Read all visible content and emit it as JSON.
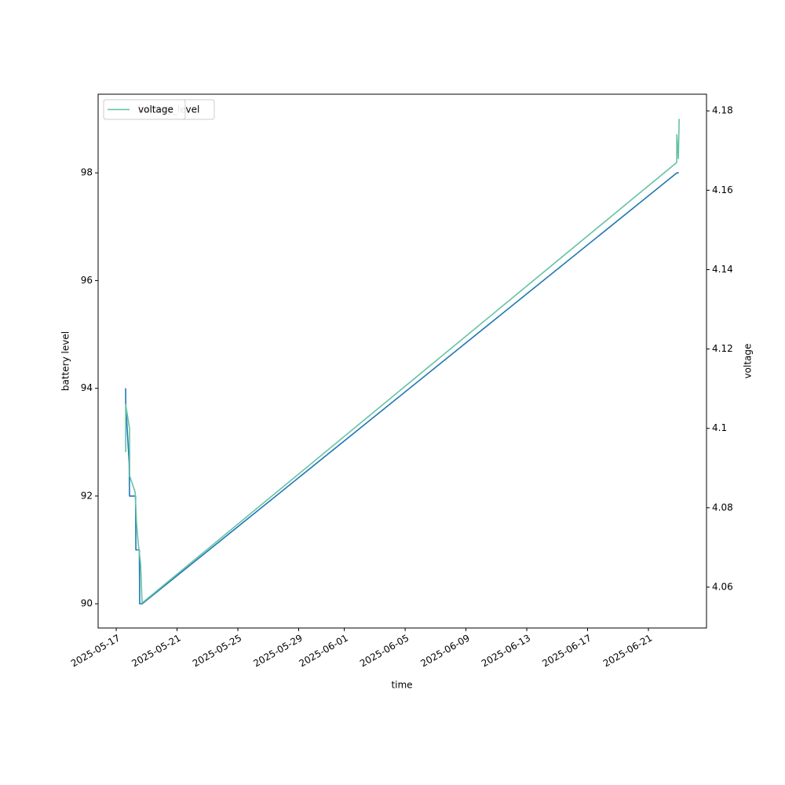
{
  "chart_data": {
    "type": "line",
    "x_label": "time",
    "y_label": "battery level",
    "y2_label": "voltage",
    "xlim": [
      "2025-05-15 19:25",
      "2025-06-24 19:40"
    ],
    "xticks": [
      "2025-05-17",
      "2025-05-21",
      "2025-05-25",
      "2025-05-29",
      "2025-06-01",
      "2025-06-05",
      "2025-06-09",
      "2025-06-13",
      "2025-06-17",
      "2025-06-21"
    ],
    "ylim": [
      89.55,
      99.46
    ],
    "yticks": [
      90,
      92,
      94,
      96,
      98
    ],
    "y2lim": [
      4.0497,
      4.1842
    ],
    "y2ticks": [
      4.06,
      4.08,
      4.1,
      4.12,
      4.14,
      4.16,
      4.18
    ],
    "legend": "upper left",
    "series": [
      {
        "name": "battery_level",
        "color": "#1f77b4",
        "x": [
          "2025-05-17 14:50",
          "2025-05-17 15:00",
          "2025-05-17 20:30",
          "2025-05-17 21:00",
          "2025-05-18 06:30",
          "2025-05-18 07:00",
          "2025-05-18 12:30",
          "2025-05-18 13:00",
          "2025-05-18 17:00",
          "2025-06-22 21:00",
          "2025-06-23 00:00"
        ],
        "values": [
          94,
          93.7,
          92.6,
          92,
          92,
          91,
          91,
          90,
          90,
          98,
          98
        ]
      },
      {
        "name": "voltage",
        "color": "#66c2a5",
        "axis": "y2",
        "x": [
          "2025-05-17 14:52",
          "2025-05-17 14:55",
          "2025-05-17 21:00",
          "2025-05-17 21:10",
          "2025-05-18 05:45",
          "2025-05-18 08:10",
          "2025-05-18 10:45",
          "2025-05-18 14:25",
          "2025-05-18 16:50",
          "2025-06-22 20:40",
          "2025-06-22 20:50",
          "2025-06-22 23:15",
          "2025-06-23 00:30"
        ],
        "values": [
          4.094,
          4.106,
          4.1,
          4.088,
          4.084,
          4.076,
          4.071,
          4.066,
          4.056,
          4.167,
          4.174,
          4.168,
          4.178
        ]
      }
    ]
  }
}
